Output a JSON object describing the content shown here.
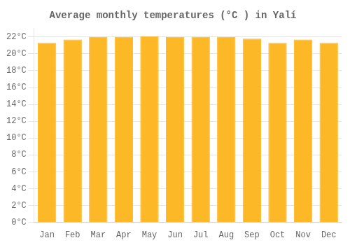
{
  "chart_data": {
    "type": "bar",
    "title": "Average monthly temperatures (°C ) in Yalí",
    "categories": [
      "Jan",
      "Feb",
      "Mar",
      "Apr",
      "May",
      "Jun",
      "Jul",
      "Aug",
      "Sep",
      "Oct",
      "Nov",
      "Dec"
    ],
    "values": [
      21.3,
      21.7,
      22.0,
      22.0,
      22.1,
      22.0,
      22.0,
      22.0,
      21.8,
      21.3,
      21.7,
      21.3
    ],
    "color": "#FDB827",
    "ylim": [
      0,
      23
    ],
    "yticks": [
      {
        "value": 0,
        "label": "0°C"
      },
      {
        "value": 2,
        "label": "2°C"
      },
      {
        "value": 4,
        "label": "4°C"
      },
      {
        "value": 6,
        "label": "6°C"
      },
      {
        "value": 8,
        "label": "8°C"
      },
      {
        "value": 10,
        "label": "10°C"
      },
      {
        "value": 12,
        "label": "12°C"
      },
      {
        "value": 14,
        "label": "14°C"
      },
      {
        "value": 16,
        "label": "16°C"
      },
      {
        "value": 18,
        "label": "18°C"
      },
      {
        "value": 20,
        "label": "20°C"
      },
      {
        "value": 22,
        "label": "22°C"
      }
    ],
    "grid": true
  }
}
